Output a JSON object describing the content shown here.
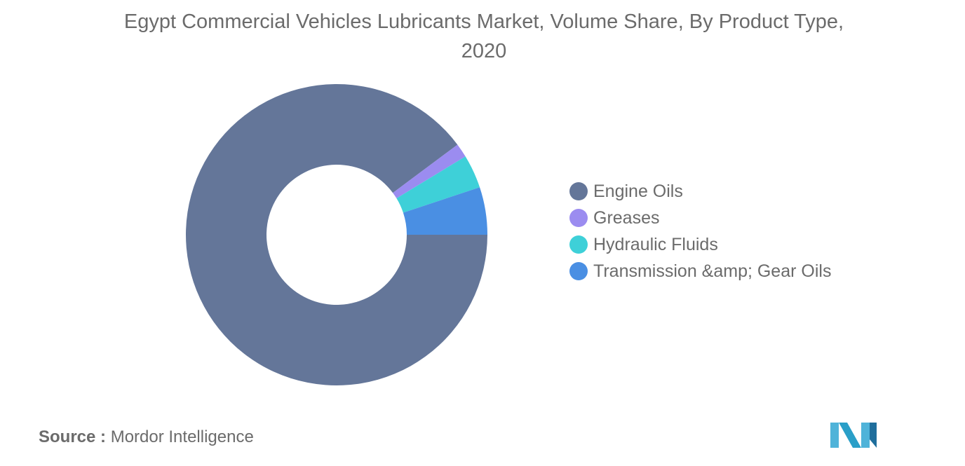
{
  "title": "Egypt Commercial Vehicles Lubricants Market, Volume Share, By Product Type, 2020",
  "source": {
    "label": "Source :",
    "value": "Mordor Intelligence"
  },
  "chart_data": {
    "type": "pie",
    "donut": true,
    "title": "Egypt Commercial Vehicles Lubricants Market, Volume Share, By Product Type, 2020",
    "legend_position": "right",
    "categories": [
      "Engine Oils",
      "Greases",
      "Hydraulic Fluids",
      "Transmission &amp; Gear Oils"
    ],
    "values": [
      89.8,
      1.5,
      3.6,
      5.1
    ],
    "colors": [
      "#647699",
      "#9b8cf0",
      "#3ed0d8",
      "#4a8fe3"
    ]
  },
  "logo": {
    "colors": [
      "#4fb3d9",
      "#2a9fc8",
      "#1f6e9c"
    ]
  }
}
